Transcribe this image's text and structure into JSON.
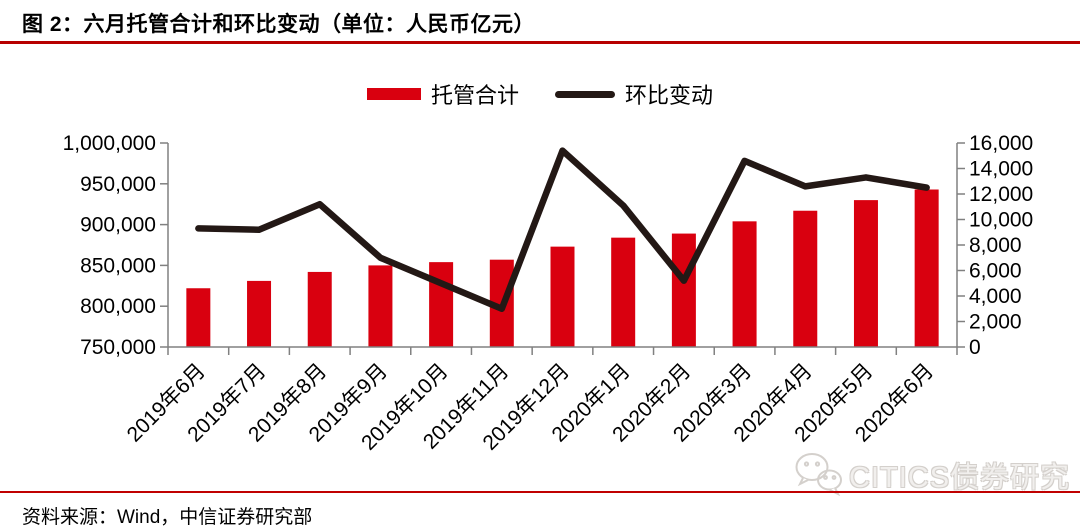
{
  "header": {
    "title": "图 2：六月托管合计和环比变动（单位：人民币亿元）"
  },
  "colors": {
    "bar": "#d9000f",
    "line": "#231815",
    "title_rule": "#b70000",
    "bottom_rule": "#c00000",
    "axis": "#808080",
    "text": "#000000",
    "watermark": "#d4d0cc"
  },
  "chart_data": {
    "type": "combo",
    "categories": [
      "2019年6月",
      "2019年7月",
      "2019年8月",
      "2019年9月",
      "2019年10月",
      "2019年11月",
      "2019年12月",
      "2020年1月",
      "2020年2月",
      "2020年3月",
      "2020年4月",
      "2020年5月",
      "2020年6月"
    ],
    "series": [
      {
        "name": "托管合计",
        "type": "bar",
        "axis": "left",
        "color": "#d9000f",
        "values": [
          822000,
          831000,
          842000,
          850000,
          854000,
          857000,
          873000,
          884000,
          889000,
          904000,
          917000,
          930000,
          943000
        ]
      },
      {
        "name": "环比变动",
        "type": "line",
        "axis": "right",
        "color": "#231815",
        "values": [
          9300,
          9200,
          11200,
          7000,
          5000,
          3000,
          15400,
          11100,
          5200,
          14600,
          12600,
          13300,
          12500
        ]
      }
    ],
    "left_axis": {
      "min": 750000,
      "max": 1000000,
      "step": 50000,
      "ticks": [
        750000,
        800000,
        850000,
        900000,
        950000,
        1000000
      ],
      "tick_labels": [
        "750,000",
        "800,000",
        "850,000",
        "900,000",
        "950,000",
        "1,000,000"
      ]
    },
    "right_axis": {
      "min": 0,
      "max": 16000,
      "step": 2000,
      "ticks": [
        0,
        2000,
        4000,
        6000,
        8000,
        10000,
        12000,
        14000,
        16000
      ],
      "tick_labels": [
        "0",
        "2,000",
        "4,000",
        "6,000",
        "8,000",
        "10,000",
        "12,000",
        "14,000",
        "16,000"
      ]
    },
    "title": "六月托管合计和环比变动",
    "unit": "人民币亿元",
    "legend_position": "top",
    "grid": false
  },
  "watermark": {
    "icon": "wechat-icon",
    "text": "CITICS债券研究"
  },
  "footer": {
    "source": "资料来源：Wind，中信证券研究部"
  }
}
